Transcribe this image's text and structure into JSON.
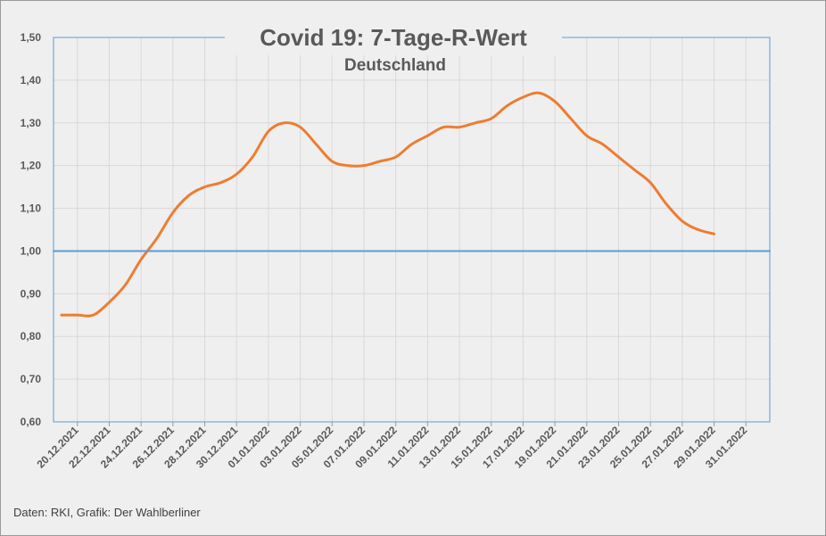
{
  "chart_data": {
    "type": "line",
    "title": "Covid 19: 7-Tage-R-Wert",
    "subtitle": "Deutschland",
    "source": "Daten: RKI, Grafik: Der Wahlberliner",
    "ylim": [
      0.6,
      1.5
    ],
    "yticks": [
      "0,60",
      "0,70",
      "0,80",
      "0,90",
      "1,00",
      "1,10",
      "1,20",
      "1,30",
      "1,40",
      "1,50"
    ],
    "yticks_values": [
      0.6,
      0.7,
      0.8,
      0.9,
      1.0,
      1.1,
      1.2,
      1.3,
      1.4,
      1.5
    ],
    "x_tick_labels": [
      "20.12.2021",
      "22.12.2021",
      "24.12.2021",
      "26.12.2021",
      "28.12.2021",
      "30.12.2021",
      "01.01.2022",
      "03.01.2022",
      "05.01.2022",
      "07.01.2022",
      "09.01.2022",
      "11.01.2022",
      "13.01.2022",
      "15.01.2022",
      "17.01.2022",
      "19.01.2022",
      "21.01.2022",
      "23.01.2022",
      "25.01.2022",
      "27.01.2022",
      "29.01.2022",
      "31.01.2022"
    ],
    "grid": true,
    "x": [
      "19.12.2021",
      "20.12.2021",
      "21.12.2021",
      "22.12.2021",
      "23.12.2021",
      "24.12.2021",
      "25.12.2021",
      "26.12.2021",
      "27.12.2021",
      "28.12.2021",
      "29.12.2021",
      "30.12.2021",
      "31.12.2021",
      "01.01.2022",
      "02.01.2022",
      "03.01.2022",
      "04.01.2022",
      "05.01.2022",
      "06.01.2022",
      "07.01.2022",
      "08.01.2022",
      "09.01.2022",
      "10.01.2022",
      "11.01.2022",
      "12.01.2022",
      "13.01.2022",
      "14.01.2022",
      "15.01.2022",
      "16.01.2022",
      "17.01.2022",
      "18.01.2022",
      "19.01.2022",
      "20.01.2022",
      "21.01.2022",
      "22.01.2022",
      "23.01.2022",
      "24.01.2022",
      "25.01.2022",
      "26.01.2022",
      "27.01.2022",
      "28.01.2022",
      "29.01.2022",
      "30.01.2022",
      "31.01.2022",
      "01.02.2022"
    ],
    "series": [
      {
        "color": "#ed7d31",
        "values": [
          0.85,
          0.85,
          0.85,
          0.88,
          0.92,
          0.98,
          1.03,
          1.09,
          1.13,
          1.15,
          1.16,
          1.18,
          1.22,
          1.28,
          1.3,
          1.29,
          1.25,
          1.21,
          1.2,
          1.2,
          1.21,
          1.22,
          1.25,
          1.27,
          1.29,
          1.29,
          1.3,
          1.31,
          1.34,
          1.36,
          1.37,
          1.35,
          1.31,
          1.27,
          1.25,
          1.22,
          1.19,
          1.16,
          1.11,
          1.07,
          1.05,
          1.04,
          null,
          null,
          null
        ]
      },
      {
        "color": "#5b9bd5",
        "values": [
          1.0,
          1.0,
          1.0,
          1.0,
          1.0,
          1.0,
          1.0,
          1.0,
          1.0,
          1.0,
          1.0,
          1.0,
          1.0,
          1.0,
          1.0,
          1.0,
          1.0,
          1.0,
          1.0,
          1.0,
          1.0,
          1.0,
          1.0,
          1.0,
          1.0,
          1.0,
          1.0,
          1.0,
          1.0,
          1.0,
          1.0,
          1.0,
          1.0,
          1.0,
          1.0,
          1.0,
          1.0,
          1.0,
          1.0,
          1.0,
          1.0,
          1.0,
          1.0,
          1.0,
          1.0
        ]
      }
    ]
  }
}
